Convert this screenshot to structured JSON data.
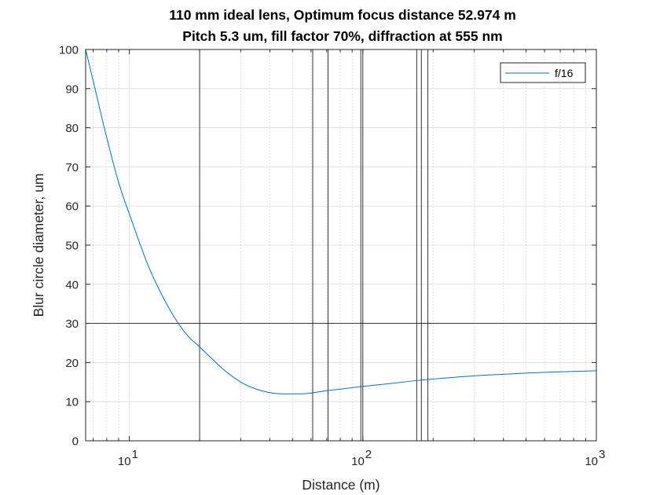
{
  "chart_data": {
    "type": "line",
    "title": "110 mm ideal lens, Optimum focus distance 52.974 m",
    "subtitle": "Pitch 5.3 um, fill factor 70%, diffraction at 555 nm",
    "xlabel": "Distance (m)",
    "ylabel": "Blur circle diameter, um",
    "xscale": "log",
    "xlim": [
      6.5,
      1000
    ],
    "ylim": [
      0,
      100
    ],
    "grid": true,
    "legend_position": "top-right",
    "y_ticks": [
      0,
      10,
      20,
      30,
      40,
      50,
      60,
      70,
      80,
      90,
      100
    ],
    "x_ticks": [
      {
        "base": "10",
        "exp": "1",
        "value": 10
      },
      {
        "base": "10",
        "exp": "2",
        "value": 100
      },
      {
        "base": "10",
        "exp": "3",
        "value": 1000
      }
    ],
    "series": [
      {
        "name": "f/16",
        "color": "#0072bd",
        "x": [
          6.5,
          7,
          8,
          9,
          10,
          12,
          14,
          16,
          18,
          20,
          25,
          30,
          35,
          40,
          45,
          50,
          55,
          60,
          70,
          80,
          100,
          130,
          170,
          220,
          300,
          400,
          600,
          1000
        ],
        "y": [
          100,
          92,
          77.5,
          66,
          58,
          45,
          36.5,
          30.5,
          26.5,
          24,
          18.5,
          15,
          13.2,
          12.3,
          12.0,
          12.0,
          12.0,
          12.2,
          12.8,
          13.2,
          13.9,
          14.6,
          15.4,
          16.0,
          16.6,
          17.0,
          17.5,
          17.9
        ]
      }
    ],
    "reference_lines": {
      "horizontal": [
        30
      ],
      "vertical": [
        20,
        61,
        71,
        98,
        100,
        170,
        178,
        190
      ]
    }
  }
}
